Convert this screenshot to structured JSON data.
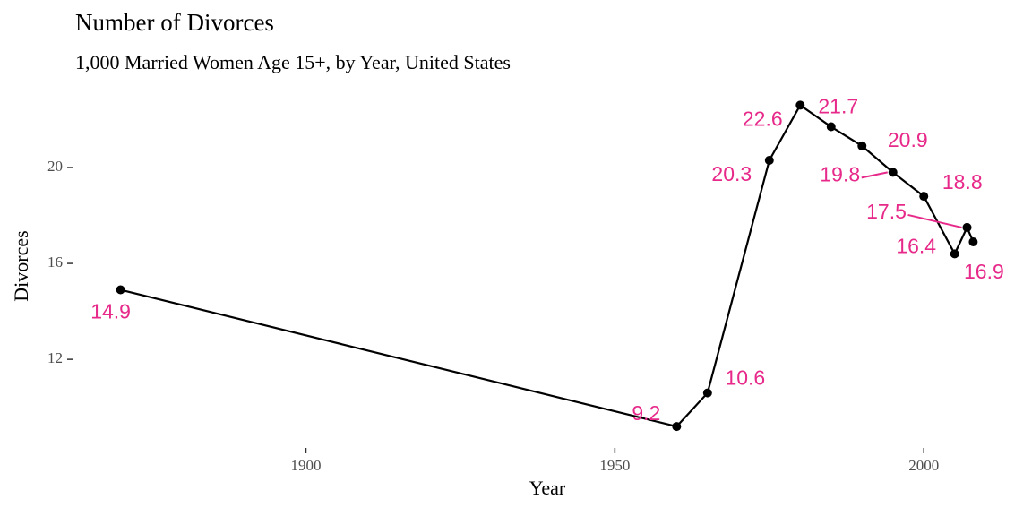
{
  "chart_data": {
    "type": "line",
    "title": "Number of Divorces",
    "subtitle": "1,000 Married Women Age 15+, by Year, United States",
    "x_label": "Year",
    "y_label": "Divorces",
    "x": [
      1870,
      1960,
      1965,
      1975,
      1980,
      1985,
      1990,
      1995,
      2000,
      2005,
      2007,
      2008
    ],
    "series": [
      {
        "color": "#000000",
        "label_color": "#e7298a",
        "values": [
          14.9,
          9.2,
          10.6,
          20.3,
          22.6,
          21.7,
          20.9,
          19.8,
          18.8,
          16.4,
          17.5,
          16.9
        ]
      }
    ],
    "xlim": [
      1863.1,
      2014.9
    ],
    "xticks": [
      1900,
      1950,
      2000
    ],
    "ylim": [
      8.53,
      23.27
    ],
    "yticks": [
      12,
      16,
      20
    ]
  }
}
